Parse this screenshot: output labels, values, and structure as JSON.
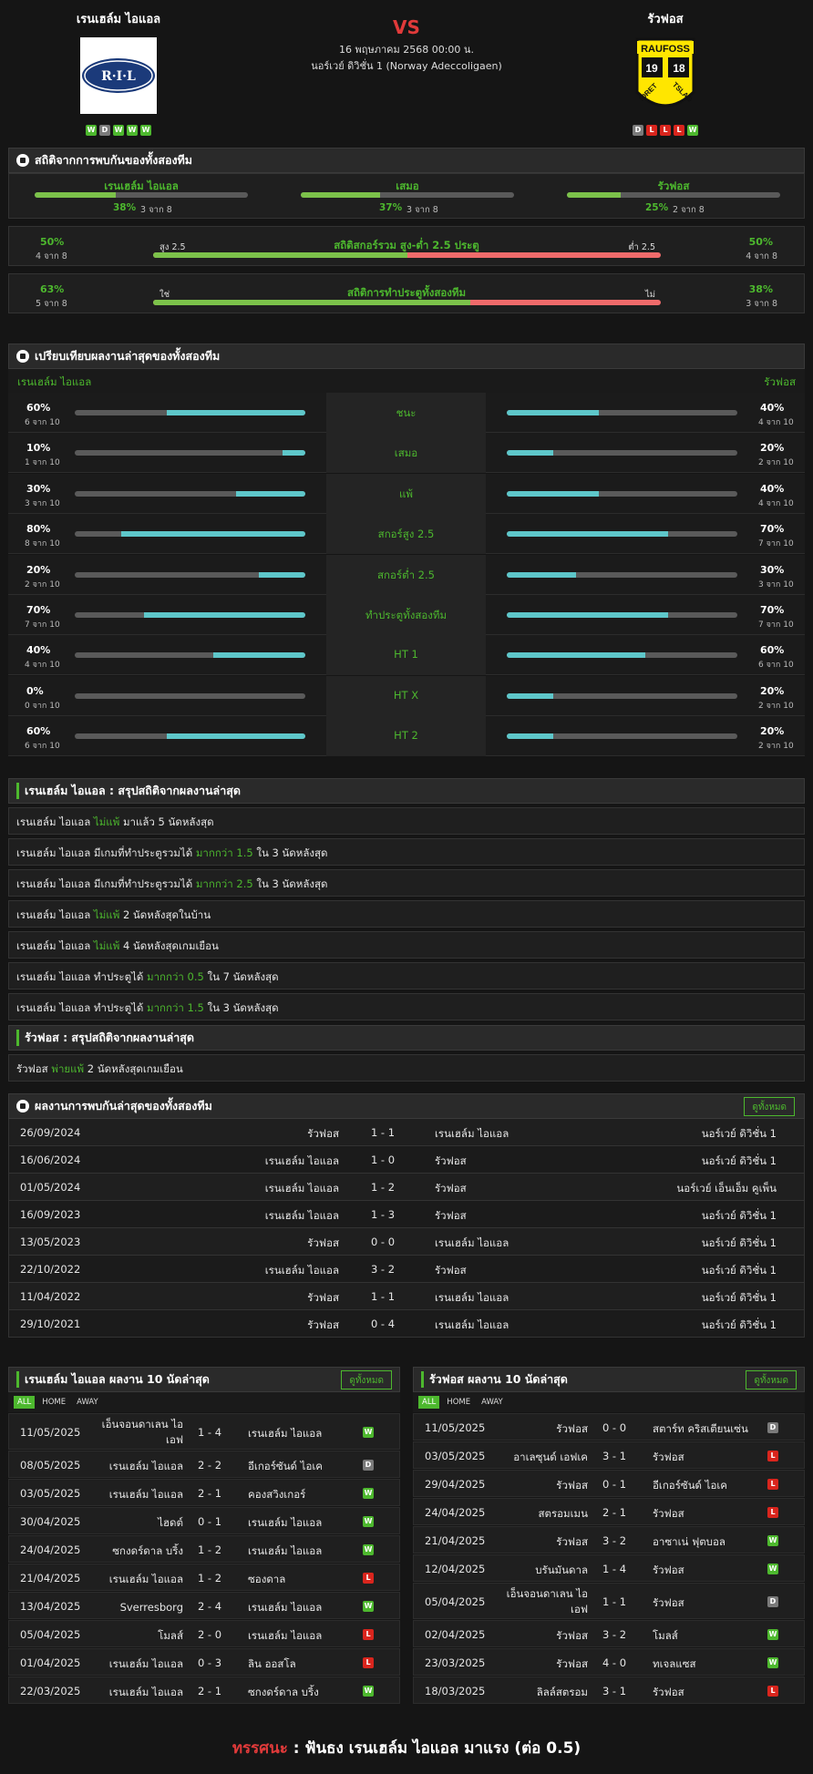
{
  "match": {
    "home": "เรนเฮล์ม ไอแอล",
    "away": "รัวฟอส",
    "vs": "VS",
    "datetime": "16 พฤษภาคม 2568 00:00 น.",
    "league": "นอร์เวย์ ดิวิชั่น 1 (Norway Adeccoligaen)",
    "home_form": [
      "W",
      "D",
      "W",
      "W",
      "W"
    ],
    "away_form": [
      "D",
      "L",
      "L",
      "L",
      "W"
    ],
    "home_logo_text": "R·I·L",
    "away_logo": {
      "top": "RAUFOSS",
      "n1": "19",
      "n2": "18",
      "bl": "IDRET",
      "br": "TSLAG"
    }
  },
  "h2h_stats": {
    "title": "สถิติจากการพบกันของทั้งสองทีม",
    "items": [
      {
        "label": "เรนเฮล์ม ไอแอล",
        "pct": "38%",
        "of": "3 จาก 8",
        "value": 38
      },
      {
        "label": "เสมอ",
        "pct": "37%",
        "of": "3 จาก 8",
        "value": 37
      },
      {
        "label": "รัวฟอส",
        "pct": "25%",
        "of": "2 จาก 8",
        "value": 25
      }
    ],
    "ou": {
      "title": "สถิติสกอร์รวม สูง-ต่ำ 2.5 ประตู",
      "left_pct": "50%",
      "left_of": "4 จาก 8",
      "right_pct": "50%",
      "right_of": "4 จาก 8",
      "left_label": "สูง 2.5",
      "right_label": "ต่ำ 2.5",
      "value": 50
    },
    "btts": {
      "title": "สถิติการทำประตูทั้งสองทีม",
      "left_pct": "63%",
      "left_of": "5 จาก 8",
      "right_pct": "38%",
      "right_of": "3 จาก 8",
      "left_label": "ใช่",
      "right_label": "ไม่",
      "value": 62.5
    }
  },
  "recent_compare": {
    "title": "เปรียบเทียบผลงานล่าสุดของทั้งสองทีม",
    "home": "เรนเฮล์ม ไอแอล",
    "away": "รัวฟอส",
    "rows": [
      {
        "label": "ชนะ",
        "hp": "60%",
        "ho": "6 จาก 10",
        "hv": 60,
        "ap": "40%",
        "ao": "4 จาก 10",
        "av": 40
      },
      {
        "label": "เสมอ",
        "hp": "10%",
        "ho": "1 จาก 10",
        "hv": 10,
        "ap": "20%",
        "ao": "2 จาก 10",
        "av": 20
      },
      {
        "label": "แพ้",
        "hp": "30%",
        "ho": "3 จาก 10",
        "hv": 30,
        "ap": "40%",
        "ao": "4 จาก 10",
        "av": 40
      },
      {
        "label": "สกอร์สูง 2.5",
        "hp": "80%",
        "ho": "8 จาก 10",
        "hv": 80,
        "ap": "70%",
        "ao": "7 จาก 10",
        "av": 70
      },
      {
        "label": "สกอร์ต่ำ 2.5",
        "hp": "20%",
        "ho": "2 จาก 10",
        "hv": 20,
        "ap": "30%",
        "ao": "3 จาก 10",
        "av": 30
      },
      {
        "label": "ทำประตูทั้งสองทีม",
        "hp": "70%",
        "ho": "7 จาก 10",
        "hv": 70,
        "ap": "70%",
        "ao": "7 จาก 10",
        "av": 70
      },
      {
        "label": "HT 1",
        "hp": "40%",
        "ho": "4 จาก 10",
        "hv": 40,
        "ap": "60%",
        "ao": "6 จาก 10",
        "av": 60
      },
      {
        "label": "HT X",
        "hp": "0%",
        "ho": "0 จาก 10",
        "hv": 0,
        "ap": "20%",
        "ao": "2 จาก 10",
        "av": 20
      },
      {
        "label": "HT 2",
        "hp": "60%",
        "ho": "6 จาก 10",
        "hv": 60,
        "ap": "20%",
        "ao": "2 จาก 10",
        "av": 20
      }
    ]
  },
  "home_summary": {
    "title": "เรนเฮล์ม ไอแอล : สรุปสถิติจากผลงานล่าสุด",
    "lines": [
      {
        "a": "เรนเฮล์ม ไอแอล",
        "b": "ไม่แพ้",
        "c": "มาแล้ว 5 นัดหลังสุด"
      },
      {
        "a": "เรนเฮล์ม ไอแอล มีเกมที่ทำประตูรวมได้",
        "b": "มากกว่า 1.5",
        "c": "ใน 3 นัดหลังสุด"
      },
      {
        "a": "เรนเฮล์ม ไอแอล มีเกมที่ทำประตูรวมได้",
        "b": "มากกว่า 2.5",
        "c": "ใน 3 นัดหลังสุด"
      },
      {
        "a": "เรนเฮล์ม ไอแอล",
        "b": "ไม่แพ้",
        "c": "2 นัดหลังสุดในบ้าน"
      },
      {
        "a": "เรนเฮล์ม ไอแอล",
        "b": "ไม่แพ้",
        "c": "4 นัดหลังสุดเกมเยือน"
      },
      {
        "a": "เรนเฮล์ม ไอแอล ทำประตูได้",
        "b": "มากกว่า 0.5",
        "c": "ใน 7 นัดหลังสุด"
      },
      {
        "a": "เรนเฮล์ม ไอแอล ทำประตูได้",
        "b": "มากกว่า 1.5",
        "c": "ใน 3 นัดหลังสุด"
      }
    ]
  },
  "away_summary": {
    "title": "รัวฟอส : สรุปสถิติจากผลงานล่าสุด",
    "lines": [
      {
        "a": "รัวฟอส",
        "b": "พ่ายแพ้",
        "c": "2 นัดหลังสุดเกมเยือน"
      }
    ]
  },
  "h2h": {
    "title": "ผลงานการพบกันล่าสุดของทั้งสองทีม",
    "button": "ดูทั้งหมด",
    "rows": [
      {
        "d": "26/09/2024",
        "h": "รัวฟอส",
        "s": "1 - 1",
        "a": "เรนเฮล์ม ไอแอล",
        "l": "นอร์เวย์ ดิวิชั่น 1"
      },
      {
        "d": "16/06/2024",
        "h": "เรนเฮล์ม ไอแอล",
        "s": "1 - 0",
        "a": "รัวฟอส",
        "l": "นอร์เวย์ ดิวิชั่น 1"
      },
      {
        "d": "01/05/2024",
        "h": "เรนเฮล์ม ไอแอล",
        "s": "1 - 2",
        "a": "รัวฟอส",
        "l": "นอร์เวย์ เอ็นเอ็ม คูเพ็น"
      },
      {
        "d": "16/09/2023",
        "h": "เรนเฮล์ม ไอแอล",
        "s": "1 - 3",
        "a": "รัวฟอส",
        "l": "นอร์เวย์ ดิวิชั่น 1"
      },
      {
        "d": "13/05/2023",
        "h": "รัวฟอส",
        "s": "0 - 0",
        "a": "เรนเฮล์ม ไอแอล",
        "l": "นอร์เวย์ ดิวิชั่น 1"
      },
      {
        "d": "22/10/2022",
        "h": "เรนเฮล์ม ไอแอล",
        "s": "3 - 2",
        "a": "รัวฟอส",
        "l": "นอร์เวย์ ดิวิชั่น 1"
      },
      {
        "d": "11/04/2022",
        "h": "รัวฟอส",
        "s": "1 - 1",
        "a": "เรนเฮล์ม ไอแอล",
        "l": "นอร์เวย์ ดิวิชั่น 1"
      },
      {
        "d": "29/10/2021",
        "h": "รัวฟอส",
        "s": "0 - 4",
        "a": "เรนเฮล์ม ไอแอล",
        "l": "นอร์เวย์ ดิวิชั่น 1"
      }
    ]
  },
  "home_last10": {
    "title": "เรนเฮล์ม ไอแอล ผลงาน 10 นัดล่าสุด",
    "button": "ดูทั้งหมด",
    "tabs": [
      "ALL",
      "HOME",
      "AWAY"
    ],
    "rows": [
      {
        "d": "11/05/2025",
        "h": "เอ็นจอนดาเลน ไอเอฟ",
        "s": "1 - 4",
        "a": "เรนเฮล์ม ไอแอล",
        "r": "W"
      },
      {
        "d": "08/05/2025",
        "h": "เรนเฮล์ม ไอแอล",
        "s": "2 - 2",
        "a": "อีเกอร์ซันด์ ไอเค",
        "r": "D"
      },
      {
        "d": "03/05/2025",
        "h": "เรนเฮล์ม ไอแอล",
        "s": "2 - 1",
        "a": "คองสวิงเกอร์",
        "r": "W"
      },
      {
        "d": "30/04/2025",
        "h": "ไฮดต์",
        "s": "0 - 1",
        "a": "เรนเฮล์ม ไอแอล",
        "r": "W"
      },
      {
        "d": "24/04/2025",
        "h": "ซกงดร์ดาล บริ้ง",
        "s": "1 - 2",
        "a": "เรนเฮล์ม ไอแอล",
        "r": "W"
      },
      {
        "d": "21/04/2025",
        "h": "เรนเฮล์ม ไอแอล",
        "s": "1 - 2",
        "a": "ซองดาล",
        "r": "L"
      },
      {
        "d": "13/04/2025",
        "h": "Sverresborg",
        "s": "2 - 4",
        "a": "เรนเฮล์ม ไอแอล",
        "r": "W"
      },
      {
        "d": "05/04/2025",
        "h": "โมลส์",
        "s": "2 - 0",
        "a": "เรนเฮล์ม ไอแอล",
        "r": "L"
      },
      {
        "d": "01/04/2025",
        "h": "เรนเฮล์ม ไอแอล",
        "s": "0 - 3",
        "a": "ลิน ออสโล",
        "r": "L"
      },
      {
        "d": "22/03/2025",
        "h": "เรนเฮล์ม ไอแอล",
        "s": "2 - 1",
        "a": "ซกงดร์ดาล บริ้ง",
        "r": "W"
      }
    ]
  },
  "away_last10": {
    "title": "รัวฟอส ผลงาน 10 นัดล่าสุด",
    "button": "ดูทั้งหมด",
    "tabs": [
      "ALL",
      "HOME",
      "AWAY"
    ],
    "rows": [
      {
        "d": "11/05/2025",
        "h": "รัวฟอส",
        "s": "0 - 0",
        "a": "สตาร์ท คริสเตียนเซ่น",
        "r": "D"
      },
      {
        "d": "03/05/2025",
        "h": "อาเลซุนด์ เอฟเค",
        "s": "3 - 1",
        "a": "รัวฟอส",
        "r": "L"
      },
      {
        "d": "29/04/2025",
        "h": "รัวฟอส",
        "s": "0 - 1",
        "a": "อีเกอร์ซันด์ ไอเค",
        "r": "L"
      },
      {
        "d": "24/04/2025",
        "h": "สตรอมเมน",
        "s": "2 - 1",
        "a": "รัวฟอส",
        "r": "L"
      },
      {
        "d": "21/04/2025",
        "h": "รัวฟอส",
        "s": "3 - 2",
        "a": "อาซาเน่ ฟุตบอล",
        "r": "W"
      },
      {
        "d": "12/04/2025",
        "h": "บรันมันดาล",
        "s": "1 - 4",
        "a": "รัวฟอส",
        "r": "W"
      },
      {
        "d": "05/04/2025",
        "h": "เอ็นจอนดาเลน ไอเอฟ",
        "s": "1 - 1",
        "a": "รัวฟอส",
        "r": "D"
      },
      {
        "d": "02/04/2025",
        "h": "รัวฟอส",
        "s": "3 - 2",
        "a": "โมลส์",
        "r": "W"
      },
      {
        "d": "23/03/2025",
        "h": "รัวฟอส",
        "s": "4 - 0",
        "a": "ทเจลแซส",
        "r": "W"
      },
      {
        "d": "18/03/2025",
        "h": "ลิลล์สตรอม",
        "s": "3 - 1",
        "a": "รัวฟอส",
        "r": "L"
      }
    ]
  },
  "verdict": {
    "label": "ทรรศนะ",
    "sep": ":",
    "text": "ฟันธง เรนเฮล์ม ไอแอล มาแรง (ต่อ 0.5)"
  },
  "colors": {
    "green": "#4db82e",
    "cyan": "#5ec7ca",
    "red": "#f06b6b",
    "vs": "#e03a3a"
  }
}
